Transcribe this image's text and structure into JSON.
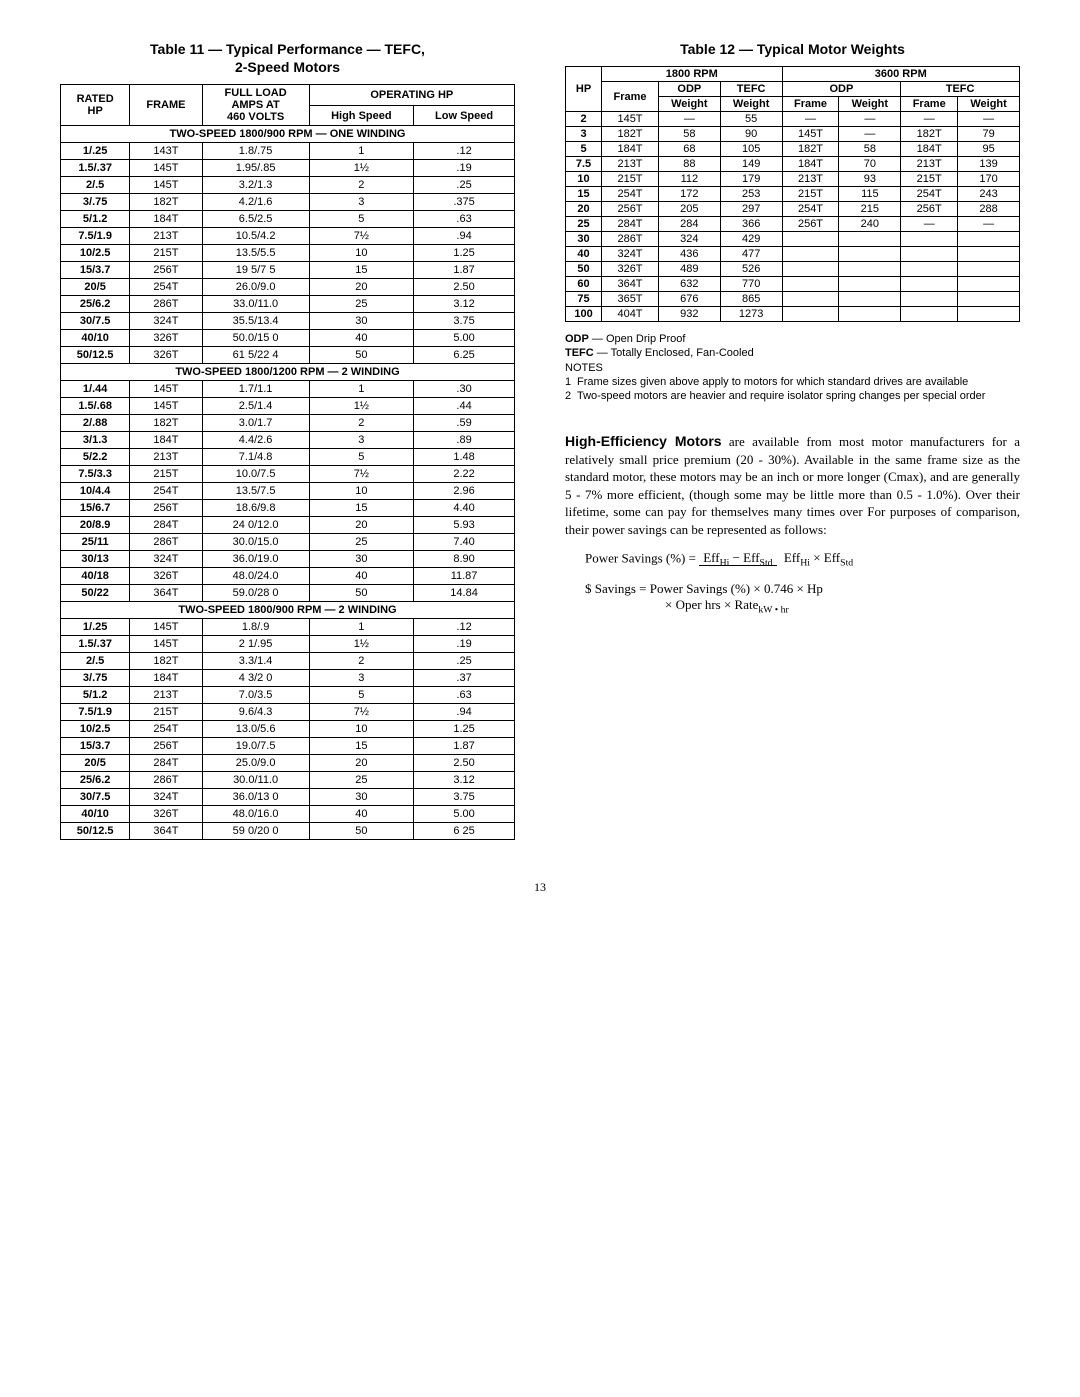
{
  "page_number": "13",
  "table11": {
    "title": "Table 11 — Typical Performance — TEFC,\n2-Speed Motors",
    "headers": {
      "rated": "RATED\nHP",
      "frame": "FRAME",
      "amps": "FULL LOAD\nAMPS AT\n460 VOLTS",
      "oper": "OPERATING HP",
      "hi": "High Speed",
      "lo": "Low Speed"
    },
    "sections": [
      {
        "label": "TWO-SPEED 1800/900 RPM — ONE WINDING",
        "rows": [
          [
            "1/.25",
            "143T",
            "1.8/.75",
            "1",
            ".12"
          ],
          [
            "1.5/.37",
            "145T",
            "1.95/.85",
            "1½",
            ".19"
          ],
          [
            "2/.5",
            "145T",
            "3.2/1.3",
            "2",
            ".25"
          ],
          [
            "3/.75",
            "182T",
            "4.2/1.6",
            "3",
            ".375"
          ],
          [
            "5/1.2",
            "184T",
            "6.5/2.5",
            "5",
            ".63"
          ],
          [
            "7.5/1.9",
            "213T",
            "10.5/4.2",
            "7½",
            ".94"
          ],
          [
            "10/2.5",
            "215T",
            "13.5/5.5",
            "10",
            "1.25"
          ],
          [
            "15/3.7",
            "256T",
            "19 5/7 5",
            "15",
            "1.87"
          ],
          [
            "20/5",
            "254T",
            "26.0/9.0",
            "20",
            "2.50"
          ],
          [
            "25/6.2",
            "286T",
            "33.0/11.0",
            "25",
            "3.12"
          ],
          [
            "30/7.5",
            "324T",
            "35.5/13.4",
            "30",
            "3.75"
          ],
          [
            "40/10",
            "326T",
            "50.0/15 0",
            "40",
            "5.00"
          ],
          [
            "50/12.5",
            "326T",
            "61 5/22 4",
            "50",
            "6.25"
          ]
        ]
      },
      {
        "label": "TWO-SPEED 1800/1200 RPM — 2 WINDING",
        "rows": [
          [
            "1/.44",
            "145T",
            "1.7/1.1",
            "1",
            ".30"
          ],
          [
            "1.5/.68",
            "145T",
            "2.5/1.4",
            "1½",
            ".44"
          ],
          [
            "2/.88",
            "182T",
            "3.0/1.7",
            "2",
            ".59"
          ],
          [
            "3/1.3",
            "184T",
            "4.4/2.6",
            "3",
            ".89"
          ],
          [
            "5/2.2",
            "213T",
            "7.1/4.8",
            "5",
            "1.48"
          ],
          [
            "7.5/3.3",
            "215T",
            "10.0/7.5",
            "7½",
            "2.22"
          ],
          [
            "10/4.4",
            "254T",
            "13.5/7.5",
            "10",
            "2.96"
          ],
          [
            "15/6.7",
            "256T",
            "18.6/9.8",
            "15",
            "4.40"
          ],
          [
            "20/8.9",
            "284T",
            "24 0/12.0",
            "20",
            "5.93"
          ],
          [
            "25/11",
            "286T",
            "30.0/15.0",
            "25",
            "7.40"
          ],
          [
            "30/13",
            "324T",
            "36.0/19.0",
            "30",
            "8.90"
          ],
          [
            "40/18",
            "326T",
            "48.0/24.0",
            "40",
            "11.87"
          ],
          [
            "50/22",
            "364T",
            "59.0/28 0",
            "50",
            "14.84"
          ]
        ]
      },
      {
        "label": "TWO-SPEED 1800/900 RPM — 2 WINDING",
        "rows": [
          [
            "1/.25",
            "145T",
            "1.8/.9",
            "1",
            ".12"
          ],
          [
            "1.5/.37",
            "145T",
            "2 1/.95",
            "1½",
            ".19"
          ],
          [
            "2/.5",
            "182T",
            "3.3/1.4",
            "2",
            ".25"
          ],
          [
            "3/.75",
            "184T",
            "4 3/2 0",
            "3",
            ".37"
          ],
          [
            "5/1.2",
            "213T",
            "7.0/3.5",
            "5",
            ".63"
          ],
          [
            "7.5/1.9",
            "215T",
            "9.6/4.3",
            "7½",
            ".94"
          ],
          [
            "10/2.5",
            "254T",
            "13.0/5.6",
            "10",
            "1.25"
          ],
          [
            "15/3.7",
            "256T",
            "19.0/7.5",
            "15",
            "1.87"
          ],
          [
            "20/5",
            "284T",
            "25.0/9.0",
            "20",
            "2.50"
          ],
          [
            "25/6.2",
            "286T",
            "30.0/11.0",
            "25",
            "3.12"
          ],
          [
            "30/7.5",
            "324T",
            "36.0/13 0",
            "30",
            "3.75"
          ],
          [
            "40/10",
            "326T",
            "48.0/16.0",
            "40",
            "5.00"
          ],
          [
            "50/12.5",
            "364T",
            "59 0/20 0",
            "50",
            "6 25"
          ]
        ]
      }
    ]
  },
  "table12": {
    "title": "Table 12 — Typical Motor Weights",
    "headers": {
      "hp": "HP",
      "r1800": "1800 RPM",
      "r3600": "3600 RPM",
      "odp": "ODP",
      "tefc": "TEFC",
      "frame": "Frame",
      "weight": "Weight"
    },
    "rows": [
      {
        "hp": "2",
        "f": "145T",
        "ow": "—",
        "tw": "55",
        "of2": "—",
        "ow2": "—",
        "tf2": "—",
        "tw2": "—"
      },
      {
        "hp": "3",
        "f": "182T",
        "ow": "58",
        "tw": "90",
        "of2": "145T",
        "ow2": "—",
        "tf2": "182T",
        "tw2": "79"
      },
      {
        "hp": "5",
        "f": "184T",
        "ow": "68",
        "tw": "105",
        "of2": "182T",
        "ow2": "58",
        "tf2": "184T",
        "tw2": "95"
      },
      {
        "hp": "7.5",
        "f": "213T",
        "ow": "88",
        "tw": "149",
        "of2": "184T",
        "ow2": "70",
        "tf2": "213T",
        "tw2": "139"
      },
      {
        "hp": "10",
        "f": "215T",
        "ow": "112",
        "tw": "179",
        "of2": "213T",
        "ow2": "93",
        "tf2": "215T",
        "tw2": "170"
      },
      {
        "hp": "15",
        "f": "254T",
        "ow": "172",
        "tw": "253",
        "of2": "215T",
        "ow2": "115",
        "tf2": "254T",
        "tw2": "243"
      },
      {
        "hp": "20",
        "f": "256T",
        "ow": "205",
        "tw": "297",
        "of2": "254T",
        "ow2": "215",
        "tf2": "256T",
        "tw2": "288"
      },
      {
        "hp": "25",
        "f": "284T",
        "ow": "284",
        "tw": "366",
        "of2": "256T",
        "ow2": "240",
        "tf2": "—",
        "tw2": "—"
      },
      {
        "hp": "30",
        "f": "286T",
        "ow": "324",
        "tw": "429",
        "of2": "",
        "ow2": "",
        "tf2": "",
        "tw2": ""
      },
      {
        "hp": "40",
        "f": "324T",
        "ow": "436",
        "tw": "477",
        "of2": "",
        "ow2": "",
        "tf2": "",
        "tw2": ""
      },
      {
        "hp": "50",
        "f": "326T",
        "ow": "489",
        "tw": "526",
        "of2": "",
        "ow2": "",
        "tf2": "",
        "tw2": ""
      },
      {
        "hp": "60",
        "f": "364T",
        "ow": "632",
        "tw": "770",
        "of2": "",
        "ow2": "",
        "tf2": "",
        "tw2": ""
      },
      {
        "hp": "75",
        "f": "365T",
        "ow": "676",
        "tw": "865",
        "of2": "",
        "ow2": "",
        "tf2": "",
        "tw2": ""
      },
      {
        "hp": "100",
        "f": "404T",
        "ow": "932",
        "tw": "1273",
        "of2": "",
        "ow2": "",
        "tf2": "",
        "tw2": ""
      }
    ]
  },
  "legend": {
    "odp": "ODP",
    "odp_txt": " — Open Drip Proof",
    "tefc": "TEFC",
    "tefc_txt": " — Totally Enclosed, Fan-Cooled",
    "notes_label": "NOTES",
    "note1": "Frame sizes given above apply to motors for which standard drives are available",
    "note2": "Two-speed motors are heavier and require isolator spring changes per special order"
  },
  "body": {
    "lead": "High-Efficiency Motors",
    "para": " are available from most motor manufacturers for a relatively small price premium (20 - 30%). Available in the same frame size as the standard motor, these motors may be an inch or more longer (Cmax), and are generally 5 - 7% more efficient, (though some may be little more than 0.5 - 1.0%). Over their lifetime, some can pay for themselves many times over For purposes of comparison, their power savings can be represented as follows:",
    "formula1_lhs": "Power Savings (%) = ",
    "formula1_num": "EffHi − EffStd",
    "formula1_den": "EffHi × EffStd",
    "formula2": "$ Savings = Power Savings (%) × 0.746 × Hp",
    "formula2b": "× Oper hrs × RatekW • hr"
  }
}
